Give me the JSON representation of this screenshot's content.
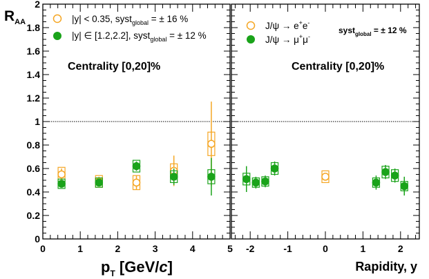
{
  "chart_data": [
    {
      "type": "scatter",
      "panel": "left",
      "ylabel": "R",
      "ylabel_sub": "AA",
      "xlabel": "p",
      "xlabel_sub": "T",
      "xlabel_unit": " [GeV/",
      "xlabel_unit_c": "c",
      "xlabel_unit_end": "]",
      "xlim": [
        0,
        5
      ],
      "ylim": [
        0,
        2
      ],
      "x_ticks": [
        "0",
        "1",
        "2",
        "3",
        "4",
        "5"
      ],
      "y_ticks": [
        "0",
        "0.2",
        "0.4",
        "0.6",
        "0.8",
        "1",
        "1.2",
        "1.4",
        "1.6",
        "1.8",
        "2"
      ],
      "reference_line": 1,
      "centrality_label": "Centrality [0,20]%",
      "legend_placement": "top-left",
      "legend": [
        {
          "pre": "|y| < 0.35, syst",
          "sub": "global",
          "post": " = ± 16 %"
        },
        {
          "pre": "|y| ∈ [1.2,2.2], syst",
          "sub": "global",
          "post": " = ± 12 %"
        }
      ],
      "series": [
        {
          "color": "#f5a623",
          "marker": "open-circle",
          "x": [
            0.5,
            1.5,
            2.5,
            3.5,
            4.5
          ],
          "y": [
            0.55,
            0.49,
            0.48,
            0.58,
            0.81
          ],
          "stat_err": [
            0.05,
            0.04,
            0.06,
            0.13,
            0.36
          ],
          "syst_err": [
            0.06,
            0.05,
            0.06,
            0.06,
            0.1
          ]
        },
        {
          "color": "#1aa31a",
          "marker": "filled-circle",
          "x": [
            0.5,
            1.5,
            2.5,
            3.5,
            4.5
          ],
          "y": [
            0.47,
            0.48,
            0.62,
            0.53,
            0.53
          ],
          "stat_err": [
            0.03,
            0.03,
            0.04,
            0.07,
            0.16
          ],
          "syst_err": [
            0.04,
            0.04,
            0.05,
            0.05,
            0.06
          ]
        }
      ]
    },
    {
      "type": "scatter",
      "panel": "right",
      "xlabel": "Rapidity, y",
      "xlim": [
        -2.5,
        2.5
      ],
      "ylim": [
        0,
        2
      ],
      "x_ticks": [
        "-2",
        "-1",
        "0",
        "1",
        "2"
      ],
      "reference_line": 1,
      "centrality_label": "Centrality [0,20]%",
      "legend_placement": "top-left",
      "legend": [
        {
          "pre": "J/ψ → e",
          "sup1": "+",
          "mid": "e",
          "sup2": "-"
        },
        {
          "pre": "J/ψ → μ",
          "sup1": "+",
          "mid": "μ",
          "sup2": "-"
        }
      ],
      "syst_label": {
        "pre": "syst",
        "sub": "global",
        "post": " = ± 12 %"
      },
      "series": [
        {
          "color": "#f5a623",
          "marker": "open-circle",
          "x": [
            0.0
          ],
          "y": [
            0.53
          ],
          "stat_err": [
            0.03
          ],
          "syst_err": [
            0.05
          ]
        },
        {
          "color": "#1aa31a",
          "marker": "filled-circle",
          "x": [
            -2.1,
            -1.85,
            -1.6,
            -1.35,
            1.35,
            1.6,
            1.85,
            2.1
          ],
          "y": [
            0.51,
            0.48,
            0.49,
            0.6,
            0.48,
            0.57,
            0.54,
            0.45
          ],
          "stat_err": [
            0.11,
            0.05,
            0.05,
            0.06,
            0.06,
            0.06,
            0.06,
            0.08
          ],
          "syst_err": [
            0.05,
            0.04,
            0.04,
            0.05,
            0.04,
            0.05,
            0.05,
            0.04
          ]
        }
      ]
    }
  ]
}
